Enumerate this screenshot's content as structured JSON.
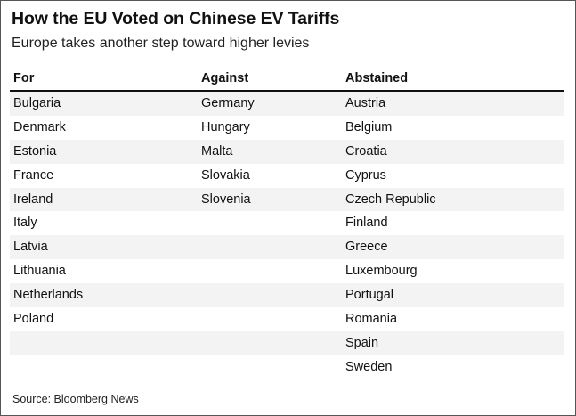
{
  "title": "How the EU Voted on Chinese EV Tariffs",
  "subtitle": "Europe takes another step toward higher levies",
  "source": "Source: Bloomberg News",
  "colors": {
    "row_shade": "#f3f3f3",
    "text": "#111111",
    "rule": "#111111"
  },
  "chart_data": {
    "type": "table",
    "title": "How the EU Voted on Chinese EV Tariffs",
    "subtitle": "Europe takes another step toward higher levies",
    "columns": [
      "For",
      "Against",
      "Abstained"
    ],
    "rows": [
      [
        "Bulgaria",
        "Germany",
        "Austria"
      ],
      [
        "Denmark",
        "Hungary",
        "Belgium"
      ],
      [
        "Estonia",
        "Malta",
        "Croatia"
      ],
      [
        "France",
        "Slovakia",
        "Cyprus"
      ],
      [
        "Ireland",
        "Slovenia",
        "Czech Republic"
      ],
      [
        "Italy",
        "",
        "Finland"
      ],
      [
        "Latvia",
        "",
        "Greece"
      ],
      [
        "Lithuania",
        "",
        "Luxembourg"
      ],
      [
        "Netherlands",
        "",
        "Portugal"
      ],
      [
        "Poland",
        "",
        "Romania"
      ],
      [
        "",
        "",
        "Spain"
      ],
      [
        "",
        "",
        "Sweden"
      ]
    ],
    "source": "Source: Bloomberg News"
  }
}
